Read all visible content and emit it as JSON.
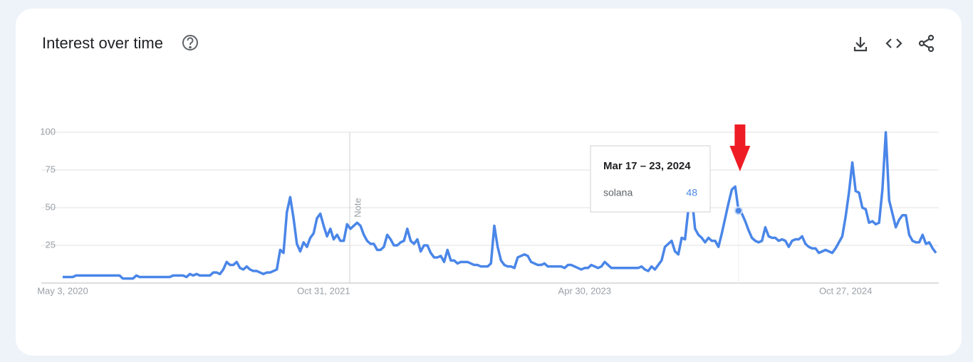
{
  "chart_data": {
    "type": "line",
    "title": "Interest over time",
    "categories": [
      "May 3, 2020",
      null,
      null,
      null,
      null,
      null,
      null,
      null,
      null,
      null,
      null,
      null,
      null,
      null,
      null,
      null,
      null,
      null,
      null,
      null,
      null,
      null,
      null,
      null,
      null,
      null,
      null,
      null,
      null,
      null,
      null,
      null,
      null,
      null,
      null,
      null,
      null,
      null,
      null,
      null,
      null,
      null,
      null,
      null,
      null,
      null,
      null,
      null,
      null,
      null,
      null,
      null,
      null,
      null,
      null,
      null,
      null,
      null,
      null,
      null,
      null,
      null,
      null,
      null,
      null,
      null,
      null,
      null,
      null,
      null,
      null,
      null,
      null,
      null,
      null,
      null,
      null,
      null,
      "Oct 31, 2021",
      null,
      null,
      null,
      null,
      null,
      null,
      null,
      null,
      null,
      null,
      null,
      null,
      null,
      null,
      null,
      null,
      null,
      null,
      null,
      null,
      null,
      null,
      null,
      null,
      null,
      null,
      null,
      null,
      null,
      null,
      null,
      null,
      null,
      null,
      null,
      null,
      null,
      null,
      null,
      null,
      null,
      null,
      null,
      null,
      null,
      null,
      null,
      null,
      null,
      null,
      null,
      null,
      null,
      null,
      null,
      null,
      null,
      null,
      null,
      null,
      null,
      null,
      null,
      null,
      null,
      null,
      null,
      null,
      null,
      null,
      null,
      null,
      null,
      null,
      null,
      null,
      null,
      "Apr 30, 2023",
      null,
      null,
      null,
      null,
      null,
      null,
      null,
      null,
      null,
      null,
      null,
      null,
      null,
      null,
      null,
      null,
      null,
      null,
      null,
      null,
      null,
      null,
      null,
      null,
      null,
      null,
      null,
      null,
      null,
      null,
      null,
      null,
      null,
      null,
      null,
      null,
      null,
      null,
      null,
      null,
      null,
      null,
      null,
      null,
      null,
      null,
      null,
      null,
      null,
      null,
      null,
      null,
      null,
      null,
      null,
      null,
      null,
      null,
      null,
      null,
      null,
      null,
      null,
      null,
      null,
      null,
      null,
      null,
      null,
      null,
      null,
      null,
      null,
      null,
      null,
      null,
      null,
      "Oct 27, 2024",
      null,
      null,
      null,
      null,
      null,
      null,
      null,
      null,
      null,
      null,
      null,
      null,
      null,
      null,
      null,
      null,
      null,
      null,
      null,
      null,
      null,
      null,
      null,
      null,
      null,
      null,
      null
    ],
    "series": [
      {
        "name": "solana",
        "color": "#4a86e8",
        "values": [
          4,
          4,
          4,
          4,
          5,
          5,
          5,
          5,
          5,
          5,
          5,
          5,
          5,
          5,
          5,
          5,
          5,
          5,
          3,
          3,
          3,
          3,
          5,
          4,
          4,
          4,
          4,
          4,
          4,
          4,
          4,
          4,
          4,
          5,
          5,
          5,
          5,
          4,
          6,
          5,
          6,
          5,
          5,
          5,
          5,
          7,
          7,
          6,
          9,
          14,
          12,
          12,
          14,
          10,
          9,
          11,
          9,
          8,
          8,
          7,
          6,
          7,
          7,
          8,
          9,
          22,
          20,
          47,
          57,
          43,
          26,
          21,
          27,
          24,
          30,
          33,
          43,
          46,
          38,
          31,
          36,
          29,
          32,
          28,
          28,
          39,
          36,
          38,
          40,
          38,
          32,
          28,
          26,
          26,
          22,
          22,
          24,
          32,
          29,
          25,
          25,
          27,
          28,
          36,
          28,
          26,
          29,
          21,
          25,
          25,
          20,
          17,
          17,
          18,
          14,
          22,
          15,
          15,
          13,
          14,
          14,
          14,
          13,
          12,
          12,
          11,
          11,
          11,
          13,
          38,
          24,
          15,
          12,
          11,
          11,
          10,
          17,
          18,
          19,
          18,
          14,
          13,
          12,
          12,
          13,
          11,
          11,
          11,
          11,
          11,
          10,
          12,
          12,
          11,
          10,
          9,
          10,
          10,
          12,
          11,
          10,
          11,
          14,
          12,
          10,
          10,
          10,
          10,
          10,
          10,
          10,
          10,
          10,
          11,
          9,
          8,
          11,
          9,
          12,
          15,
          24,
          26,
          28,
          21,
          19,
          30,
          29,
          49,
          58,
          36,
          32,
          30,
          27,
          30,
          28,
          28,
          24,
          33,
          43,
          53,
          62,
          64,
          48,
          46,
          41,
          35,
          30,
          28,
          27,
          28,
          37,
          31,
          30,
          30,
          28,
          29,
          28,
          24,
          28,
          29,
          29,
          31,
          26,
          24,
          23,
          23,
          20,
          21,
          22,
          21,
          20,
          23,
          27,
          31,
          44,
          60,
          80,
          61,
          60,
          50,
          49,
          40,
          41,
          39,
          40,
          62,
          100,
          55,
          46,
          37,
          42,
          45,
          45,
          32,
          28,
          27,
          27,
          32,
          26,
          27,
          23,
          20
        ]
      }
    ],
    "ylim": [
      0,
      100
    ],
    "yticks": [
      25,
      50,
      75,
      100
    ],
    "grid": true,
    "note": "Note",
    "tooltip": {
      "title": "Mar 17 – 23, 2024"
    }
  }
}
